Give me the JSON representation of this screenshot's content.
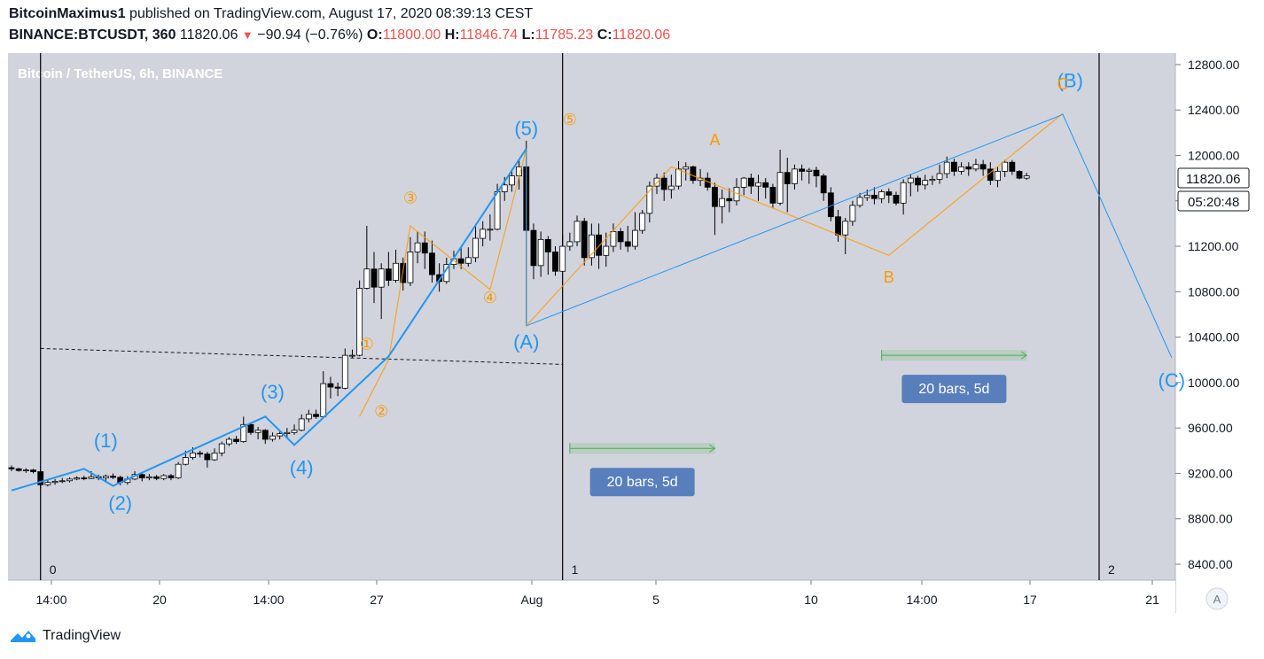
{
  "header": {
    "author": "BitcoinMaximus1",
    "published": "published on TradingView.com, August 17, 2020 08:39:13 CEST",
    "symbol": "BINANCE:BTCUSDT, 360",
    "last": "11820.06",
    "change": "−90.94 (−0.76%)",
    "o_label": "O:",
    "o_value": "11800.00",
    "h_label": "H:",
    "h_value": "11846.74",
    "l_label": "L:",
    "l_value": "11785.23",
    "c_label": "C:",
    "c_value": "11820.06"
  },
  "chart_title": "Bitcoin / TetherUS, 6h, BINANCE",
  "price_tag": "11820.06",
  "countdown": "05:20:48",
  "auto_button": "A",
  "footer": {
    "brand": "TradingView"
  },
  "colors": {
    "blue": "#2196f3",
    "orange": "#ff9800",
    "bg": "#d1d4dc",
    "green": "#4caf50"
  },
  "chart_data": {
    "type": "candlestick",
    "y_ticks": [
      "12800.00",
      "12400.00",
      "12000.00",
      "11600.00",
      "11200.00",
      "10800.00",
      "10400.00",
      "10000.00",
      "9600.00",
      "9200.00",
      "8800.00",
      "8400.00"
    ],
    "x_ticks": [
      "14:00",
      "20",
      "14:00",
      "27",
      "Aug",
      "5",
      "10",
      "14:00",
      "17",
      "21"
    ],
    "ylim": [
      8300,
      12900
    ],
    "grid": false,
    "candles": [
      [
        9250,
        9240,
        9270,
        9220
      ],
      [
        9240,
        9225,
        9250,
        9215
      ],
      [
        9225,
        9230,
        9245,
        9205
      ],
      [
        9230,
        9215,
        9240,
        9200
      ],
      [
        9215,
        9100,
        9225,
        9070
      ],
      [
        9100,
        9120,
        9145,
        9085
      ],
      [
        9120,
        9130,
        9150,
        9100
      ],
      [
        9130,
        9135,
        9160,
        9115
      ],
      [
        9135,
        9150,
        9165,
        9120
      ],
      [
        9150,
        9160,
        9175,
        9140
      ],
      [
        9160,
        9155,
        9180,
        9140
      ],
      [
        9155,
        9170,
        9220,
        9150
      ],
      [
        9170,
        9160,
        9190,
        9140
      ],
      [
        9160,
        9175,
        9190,
        9120
      ],
      [
        9175,
        9165,
        9200,
        9150
      ],
      [
        9165,
        9120,
        9180,
        9095
      ],
      [
        9120,
        9150,
        9175,
        9100
      ],
      [
        9150,
        9190,
        9220,
        9140
      ],
      [
        9190,
        9160,
        9200,
        9130
      ],
      [
        9160,
        9170,
        9195,
        9140
      ],
      [
        9170,
        9155,
        9185,
        9140
      ],
      [
        9155,
        9180,
        9195,
        9140
      ],
      [
        9180,
        9160,
        9195,
        9140
      ],
      [
        9160,
        9280,
        9300,
        9150
      ],
      [
        9280,
        9340,
        9400,
        9270
      ],
      [
        9340,
        9380,
        9430,
        9320
      ],
      [
        9380,
        9370,
        9400,
        9340
      ],
      [
        9370,
        9320,
        9390,
        9250
      ],
      [
        9320,
        9380,
        9420,
        9310
      ],
      [
        9380,
        9460,
        9480,
        9350
      ],
      [
        9460,
        9500,
        9520,
        9440
      ],
      [
        9500,
        9480,
        9530,
        9460
      ],
      [
        9480,
        9630,
        9700,
        9470
      ],
      [
        9630,
        9560,
        9650,
        9540
      ],
      [
        9560,
        9580,
        9610,
        9500
      ],
      [
        9580,
        9500,
        9590,
        9460
      ],
      [
        9500,
        9530,
        9560,
        9480
      ],
      [
        9530,
        9550,
        9580,
        9500
      ],
      [
        9550,
        9560,
        9600,
        9520
      ],
      [
        9560,
        9580,
        9630,
        9540
      ],
      [
        9580,
        9680,
        9720,
        9570
      ],
      [
        9680,
        9720,
        9760,
        9650
      ],
      [
        9720,
        9700,
        9760,
        9680
      ],
      [
        9700,
        9990,
        10100,
        9690
      ],
      [
        9990,
        9960,
        10050,
        9860
      ],
      [
        9960,
        9950,
        10000,
        9880
      ],
      [
        9950,
        10240,
        10300,
        9940
      ],
      [
        10240,
        10240,
        10290,
        10220
      ],
      [
        10240,
        10830,
        10900,
        10230
      ],
      [
        10830,
        11000,
        11380,
        10820
      ],
      [
        11000,
        10840,
        11150,
        10700
      ],
      [
        10840,
        11000,
        11050,
        10560
      ],
      [
        11000,
        10900,
        11150,
        10850
      ],
      [
        10900,
        11050,
        11170,
        10880
      ],
      [
        11050,
        10880,
        11100,
        10810
      ],
      [
        10880,
        11150,
        11280,
        10850
      ],
      [
        11150,
        11230,
        11330,
        11050
      ],
      [
        11230,
        11140,
        11330,
        11000
      ],
      [
        11140,
        10950,
        11250,
        10880
      ],
      [
        10950,
        10890,
        11050,
        10800
      ],
      [
        10890,
        11040,
        11100,
        10870
      ],
      [
        11040,
        11090,
        11160,
        11000
      ],
      [
        11090,
        11050,
        11200,
        11000
      ],
      [
        11050,
        11100,
        11190,
        11020
      ],
      [
        11100,
        11270,
        11380,
        11060
      ],
      [
        11270,
        11350,
        11420,
        11200
      ],
      [
        11350,
        11350,
        11480,
        11250
      ],
      [
        11350,
        11680,
        11750,
        11340
      ],
      [
        11680,
        11740,
        11810,
        11600
      ],
      [
        11740,
        11820,
        11880,
        11680
      ],
      [
        11820,
        11900,
        11960,
        11700
      ],
      [
        11900,
        11340,
        12130,
        10520
      ],
      [
        11340,
        11030,
        11400,
        10910
      ],
      [
        11030,
        11260,
        11330,
        10930
      ],
      [
        11260,
        11150,
        11290,
        10950
      ],
      [
        11150,
        10980,
        11200,
        10940
      ],
      [
        10980,
        11200,
        11300,
        10980
      ],
      [
        11200,
        11240,
        11320,
        11160
      ],
      [
        11240,
        11420,
        11470,
        11200
      ],
      [
        11420,
        11100,
        11450,
        11030
      ],
      [
        11100,
        11300,
        11400,
        11030
      ],
      [
        11300,
        11120,
        11400,
        11000
      ],
      [
        11120,
        11200,
        11320,
        11020
      ],
      [
        11200,
        11330,
        11400,
        11150
      ],
      [
        11330,
        11240,
        11360,
        11170
      ],
      [
        11240,
        11200,
        11380,
        11150
      ],
      [
        11200,
        11340,
        11500,
        11170
      ],
      [
        11340,
        11490,
        11520,
        11310
      ],
      [
        11490,
        11730,
        11770,
        11410
      ],
      [
        11730,
        11800,
        11840,
        11660
      ],
      [
        11800,
        11700,
        11850,
        11600
      ],
      [
        11700,
        11730,
        11830,
        11620
      ],
      [
        11730,
        11880,
        11950,
        11700
      ],
      [
        11880,
        11900,
        11940,
        11780
      ],
      [
        11900,
        11780,
        11910,
        11750
      ],
      [
        11780,
        11800,
        11880,
        11730
      ],
      [
        11800,
        11720,
        11850,
        11690
      ],
      [
        11720,
        11550,
        11760,
        11300
      ],
      [
        11550,
        11620,
        11700,
        11400
      ],
      [
        11620,
        11600,
        11710,
        11500
      ],
      [
        11600,
        11720,
        11800,
        11560
      ],
      [
        11720,
        11800,
        11810,
        11650
      ],
      [
        11800,
        11730,
        11840,
        11660
      ],
      [
        11730,
        11760,
        11830,
        11600
      ],
      [
        11760,
        11720,
        11800,
        11620
      ],
      [
        11720,
        11580,
        11750,
        11540
      ],
      [
        11580,
        11850,
        12050,
        11560
      ],
      [
        11850,
        11750,
        11980,
        11500
      ],
      [
        11750,
        11880,
        11920,
        11700
      ],
      [
        11880,
        11860,
        11920,
        11780
      ],
      [
        11860,
        11870,
        11890,
        11750
      ],
      [
        11870,
        11820,
        11900,
        11720
      ],
      [
        11820,
        11670,
        11840,
        11600
      ],
      [
        11670,
        11460,
        11720,
        11420
      ],
      [
        11460,
        11300,
        11520,
        11240
      ],
      [
        11300,
        11420,
        11450,
        11130
      ],
      [
        11420,
        11560,
        11600,
        11380
      ],
      [
        11560,
        11630,
        11670,
        11540
      ],
      [
        11630,
        11650,
        11700,
        11600
      ],
      [
        11650,
        11620,
        11720,
        11570
      ],
      [
        11620,
        11680,
        11700,
        11580
      ],
      [
        11680,
        11650,
        11710,
        11580
      ],
      [
        11650,
        11580,
        11680,
        11560
      ],
      [
        11580,
        11760,
        11790,
        11480
      ],
      [
        11760,
        11800,
        11830,
        11640
      ],
      [
        11800,
        11740,
        11820,
        11680
      ],
      [
        11740,
        11780,
        11830,
        11700
      ],
      [
        11780,
        11790,
        11820,
        11740
      ],
      [
        11790,
        11840,
        11920,
        11750
      ],
      [
        11840,
        11940,
        11990,
        11800
      ],
      [
        11940,
        11860,
        11970,
        11820
      ],
      [
        11860,
        11900,
        11940,
        11830
      ],
      [
        11900,
        11880,
        11940,
        11820
      ],
      [
        11880,
        11920,
        11970,
        11860
      ],
      [
        11920,
        11880,
        11960,
        11820
      ],
      [
        11880,
        11780,
        11940,
        11740
      ],
      [
        11780,
        11860,
        11900,
        11720
      ],
      [
        11860,
        11940,
        11960,
        11810
      ],
      [
        11940,
        11860,
        11960,
        11830
      ],
      [
        11860,
        11800,
        11870,
        11790
      ],
      [
        11800,
        11820,
        11847,
        11785
      ]
    ],
    "blue_path": [
      [
        9050,
        0
      ],
      [
        9240,
        10
      ],
      [
        9090,
        14
      ],
      [
        9700,
        35
      ],
      [
        9450,
        39
      ],
      [
        10230,
        52
      ],
      [
        12060,
        71
      ],
      [
        10500,
        71
      ],
      [
        12360,
        145
      ],
      [
        10220,
        160
      ]
    ],
    "orange_path": [
      [
        9700,
        48
      ],
      [
        10200,
        52
      ],
      [
        11380,
        55
      ],
      [
        10820,
        66
      ],
      [
        12060,
        71
      ],
      [
        10500,
        71
      ],
      [
        11900,
        91
      ],
      [
        11120,
        121
      ],
      [
        12370,
        145
      ]
    ],
    "wave_labels_blue": [
      {
        "text": "(1)",
        "price": 9430,
        "bar": 13
      },
      {
        "text": "(2)",
        "price": 8880,
        "bar": 15
      },
      {
        "text": "(3)",
        "price": 9860,
        "bar": 36
      },
      {
        "text": "(4)",
        "price": 9190,
        "bar": 40
      },
      {
        "text": "(5)",
        "price": 12180,
        "bar": 71
      },
      {
        "text": "(A)",
        "price": 10300,
        "bar": 71
      },
      {
        "text": "(B)",
        "price": 12600,
        "bar": 146
      },
      {
        "text": "(C)",
        "price": 9960,
        "bar": 160
      }
    ],
    "wave_labels_orange": [
      {
        "text": "①",
        "price": 10290,
        "bar": 49
      },
      {
        "text": "②",
        "price": 9700,
        "bar": 51
      },
      {
        "text": "③",
        "price": 11580,
        "bar": 55
      },
      {
        "text": "④",
        "price": 10700,
        "bar": 66
      },
      {
        "text": "⑤",
        "price": 12270,
        "bar": 77
      },
      {
        "text": "A",
        "price": 12090,
        "bar": 97
      },
      {
        "text": "B",
        "price": 10880,
        "bar": 121
      },
      {
        "text": "C",
        "price": 12580,
        "bar": 145
      }
    ],
    "vlines": [
      {
        "bar": 4,
        "label": "0"
      },
      {
        "bar": 76,
        "label": "1"
      },
      {
        "bar": 150,
        "label": "2"
      }
    ],
    "ranges": [
      {
        "from": 77,
        "to": 97,
        "price": 9420,
        "text": "20 bars, 5d"
      },
      {
        "from": 120,
        "to": 140,
        "price": 10240,
        "text": "20 bars, 5d"
      }
    ],
    "dashed": {
      "from_bar": 4,
      "from_price": 10300,
      "to_bar": 76,
      "to_price": 10160
    }
  }
}
